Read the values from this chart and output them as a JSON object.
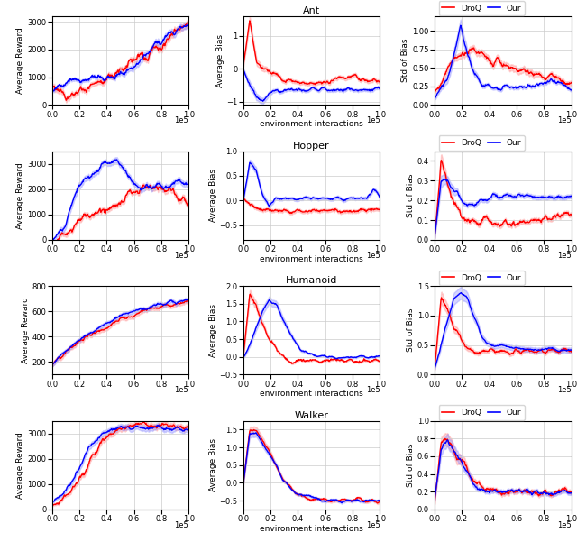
{
  "red_color": "#FF0000",
  "blue_color": "#0000FF",
  "red_fill": "#FF8888",
  "blue_fill": "#8888FF",
  "figsize": [
    6.4,
    6.01
  ],
  "dpi": 100,
  "rows": [
    {
      "name": "Ant",
      "reward": {
        "red_mean": [
          700,
          600,
          350,
          280,
          380,
          500,
          650,
          800,
          900,
          1000,
          1100,
          1300,
          1500,
          1600,
          1700,
          1800,
          2000,
          2200,
          2400,
          2600,
          2800,
          3000
        ],
        "red_std": [
          80,
          100,
          80,
          80,
          80,
          80,
          80,
          80,
          80,
          80,
          80,
          80,
          80,
          80,
          80,
          80,
          100,
          100,
          100,
          100,
          100,
          100
        ],
        "blue_mean": [
          600,
          700,
          820,
          870,
          920,
          950,
          960,
          970,
          980,
          1000,
          1050,
          1100,
          1200,
          1400,
          1700,
          2000,
          2200,
          2400,
          2600,
          2750,
          2850,
          2900
        ],
        "blue_std": [
          50,
          50,
          50,
          50,
          50,
          50,
          50,
          50,
          50,
          50,
          60,
          70,
          80,
          100,
          100,
          100,
          100,
          100,
          100,
          100,
          100,
          100
        ]
      },
      "bias": {
        "red_mean": [
          0.1,
          1.5,
          0.25,
          0.1,
          -0.1,
          -0.2,
          -0.3,
          -0.35,
          -0.4,
          -0.42,
          -0.45,
          -0.45,
          -0.4,
          -0.38,
          -0.35,
          -0.3,
          -0.3,
          -0.28,
          -0.35,
          -0.4,
          -0.38,
          -0.35
        ],
        "red_std": [
          0.04,
          0.12,
          0.1,
          0.08,
          0.06,
          0.05,
          0.05,
          0.05,
          0.05,
          0.05,
          0.05,
          0.05,
          0.05,
          0.05,
          0.05,
          0.05,
          0.05,
          0.05,
          0.05,
          0.05,
          0.05,
          0.05
        ],
        "blue_mean": [
          0.0,
          -0.5,
          -0.85,
          -1.0,
          -0.75,
          -0.7,
          -0.65,
          -0.65,
          -0.65,
          -0.65,
          -0.63,
          -0.62,
          -0.62,
          -0.62,
          -0.65,
          -0.65,
          -0.65,
          -0.65,
          -0.65,
          -0.65,
          -0.65,
          -0.65
        ],
        "blue_std": [
          0.04,
          0.1,
          0.1,
          0.08,
          0.06,
          0.05,
          0.04,
          0.04,
          0.04,
          0.04,
          0.04,
          0.04,
          0.04,
          0.04,
          0.04,
          0.04,
          0.04,
          0.04,
          0.04,
          0.04,
          0.04,
          0.04
        ]
      },
      "std_bias": {
        "red_mean": [
          0.15,
          0.3,
          0.5,
          0.6,
          0.65,
          0.72,
          0.74,
          0.7,
          0.65,
          0.6,
          0.55,
          0.52,
          0.5,
          0.48,
          0.46,
          0.44,
          0.42,
          0.4,
          0.38,
          0.35,
          0.33,
          0.3
        ],
        "red_std": [
          0.02,
          0.04,
          0.04,
          0.04,
          0.04,
          0.04,
          0.04,
          0.04,
          0.04,
          0.04,
          0.04,
          0.04,
          0.04,
          0.04,
          0.04,
          0.04,
          0.03,
          0.03,
          0.03,
          0.03,
          0.03,
          0.03
        ],
        "blue_mean": [
          0.1,
          0.2,
          0.35,
          0.7,
          1.05,
          0.7,
          0.45,
          0.3,
          0.27,
          0.25,
          0.24,
          0.24,
          0.24,
          0.24,
          0.24,
          0.25,
          0.28,
          0.3,
          0.3,
          0.28,
          0.25,
          0.22
        ],
        "blue_std": [
          0.02,
          0.03,
          0.05,
          0.08,
          0.08,
          0.06,
          0.04,
          0.03,
          0.02,
          0.02,
          0.02,
          0.02,
          0.02,
          0.02,
          0.02,
          0.02,
          0.02,
          0.02,
          0.02,
          0.02,
          0.02,
          0.02
        ]
      },
      "ylims_reward": [
        0,
        3200
      ],
      "ylims_bias": [
        -1.1,
        1.6
      ],
      "ylims_std": [
        0.0,
        1.2
      ]
    },
    {
      "name": "Hopper",
      "reward": {
        "red_mean": [
          -50,
          50,
          200,
          400,
          700,
          900,
          1000,
          1050,
          1100,
          1200,
          1400,
          1600,
          1800,
          2000,
          2100,
          2200,
          2100,
          2000,
          1900,
          1700,
          1600,
          1400
        ],
        "red_std": [
          30,
          50,
          80,
          80,
          80,
          80,
          80,
          80,
          80,
          80,
          80,
          80,
          80,
          80,
          80,
          80,
          100,
          100,
          100,
          100,
          100,
          100
        ],
        "blue_mean": [
          0,
          200,
          700,
          1400,
          2000,
          2400,
          2600,
          2800,
          3000,
          3100,
          3100,
          2900,
          2500,
          2200,
          2100,
          2100,
          2200,
          2100,
          2200,
          2300,
          2300,
          2200
        ],
        "blue_std": [
          30,
          100,
          120,
          130,
          120,
          100,
          100,
          100,
          100,
          100,
          100,
          100,
          100,
          100,
          100,
          100,
          100,
          100,
          100,
          100,
          100,
          100
        ]
      },
      "bias": {
        "red_mean": [
          0.0,
          -0.1,
          -0.15,
          -0.2,
          -0.2,
          -0.2,
          -0.2,
          -0.2,
          -0.2,
          -0.2,
          -0.2,
          -0.2,
          -0.2,
          -0.2,
          -0.2,
          -0.2,
          -0.2,
          -0.2,
          -0.2,
          -0.2,
          -0.2,
          -0.2
        ],
        "red_std": [
          0.02,
          0.03,
          0.03,
          0.03,
          0.03,
          0.03,
          0.03,
          0.03,
          0.03,
          0.03,
          0.03,
          0.03,
          0.03,
          0.03,
          0.03,
          0.03,
          0.03,
          0.03,
          0.03,
          0.03,
          0.03,
          0.03
        ],
        "blue_mean": [
          0.0,
          0.78,
          0.6,
          0.1,
          -0.1,
          0.05,
          0.05,
          0.05,
          0.05,
          0.05,
          0.05,
          0.05,
          0.05,
          0.05,
          0.05,
          0.05,
          0.05,
          0.05,
          0.05,
          0.05,
          0.25,
          0.05
        ],
        "blue_std": [
          0.02,
          0.06,
          0.06,
          0.05,
          0.04,
          0.03,
          0.03,
          0.03,
          0.03,
          0.03,
          0.03,
          0.03,
          0.03,
          0.03,
          0.03,
          0.03,
          0.03,
          0.03,
          0.03,
          0.03,
          0.03,
          0.03
        ]
      },
      "std_bias": {
        "red_mean": [
          0.02,
          0.4,
          0.3,
          0.18,
          0.12,
          0.1,
          0.09,
          0.09,
          0.09,
          0.09,
          0.09,
          0.09,
          0.09,
          0.09,
          0.09,
          0.09,
          0.1,
          0.11,
          0.11,
          0.12,
          0.13,
          0.13
        ],
        "red_std": [
          0.005,
          0.03,
          0.02,
          0.01,
          0.01,
          0.01,
          0.01,
          0.01,
          0.01,
          0.01,
          0.01,
          0.01,
          0.01,
          0.01,
          0.01,
          0.01,
          0.01,
          0.01,
          0.01,
          0.01,
          0.01,
          0.01
        ],
        "blue_mean": [
          0.02,
          0.3,
          0.3,
          0.25,
          0.2,
          0.18,
          0.18,
          0.18,
          0.2,
          0.22,
          0.22,
          0.22,
          0.22,
          0.22,
          0.22,
          0.22,
          0.22,
          0.22,
          0.22,
          0.22,
          0.22,
          0.22
        ],
        "blue_std": [
          0.005,
          0.03,
          0.02,
          0.02,
          0.01,
          0.01,
          0.01,
          0.01,
          0.01,
          0.01,
          0.01,
          0.01,
          0.01,
          0.01,
          0.01,
          0.01,
          0.01,
          0.01,
          0.01,
          0.01,
          0.01,
          0.01
        ]
      },
      "ylims_reward": [
        0,
        3500
      ],
      "ylims_bias": [
        -0.8,
        1.0
      ],
      "ylims_std": [
        0.0,
        0.45
      ]
    },
    {
      "name": "Humanoid",
      "reward": {
        "red_mean": [
          180,
          230,
          270,
          310,
          350,
          380,
          410,
          440,
          470,
          500,
          520,
          540,
          560,
          580,
          600,
          615,
          630,
          640,
          650,
          660,
          670,
          675
        ],
        "red_std": [
          15,
          15,
          15,
          15,
          15,
          15,
          15,
          15,
          15,
          15,
          15,
          15,
          15,
          15,
          15,
          15,
          15,
          15,
          15,
          15,
          15,
          15
        ],
        "blue_mean": [
          180,
          230,
          280,
          330,
          370,
          400,
          430,
          460,
          490,
          520,
          545,
          565,
          585,
          600,
          615,
          630,
          645,
          655,
          665,
          675,
          685,
          695
        ],
        "blue_std": [
          15,
          15,
          15,
          15,
          15,
          15,
          15,
          15,
          15,
          15,
          15,
          15,
          15,
          15,
          15,
          15,
          15,
          15,
          15,
          15,
          15,
          15
        ]
      },
      "bias": {
        "red_mean": [
          0.0,
          1.8,
          1.4,
          0.9,
          0.5,
          0.2,
          0.0,
          -0.1,
          -0.1,
          -0.1,
          -0.1,
          -0.1,
          -0.1,
          -0.1,
          -0.1,
          -0.1,
          -0.1,
          -0.1,
          -0.1,
          -0.1,
          -0.1,
          -0.1
        ],
        "red_std": [
          0.02,
          0.12,
          0.1,
          0.07,
          0.04,
          0.03,
          0.02,
          0.02,
          0.02,
          0.02,
          0.02,
          0.02,
          0.02,
          0.02,
          0.02,
          0.02,
          0.02,
          0.02,
          0.02,
          0.02,
          0.02,
          0.02
        ],
        "blue_mean": [
          0.0,
          0.3,
          0.8,
          1.3,
          1.6,
          1.5,
          1.1,
          0.7,
          0.4,
          0.2,
          0.1,
          0.05,
          0.0,
          0.0,
          0.0,
          0.0,
          0.0,
          0.0,
          0.0,
          0.0,
          0.0,
          0.0
        ],
        "blue_std": [
          0.02,
          0.05,
          0.08,
          0.1,
          0.1,
          0.09,
          0.08,
          0.06,
          0.04,
          0.03,
          0.02,
          0.02,
          0.02,
          0.02,
          0.02,
          0.02,
          0.02,
          0.02,
          0.02,
          0.02,
          0.02,
          0.02
        ]
      },
      "std_bias": {
        "red_mean": [
          0.1,
          1.3,
          1.1,
          0.8,
          0.6,
          0.45,
          0.4,
          0.4,
          0.4,
          0.4,
          0.4,
          0.4,
          0.4,
          0.4,
          0.4,
          0.4,
          0.4,
          0.4,
          0.4,
          0.4,
          0.4,
          0.4
        ],
        "red_std": [
          0.01,
          0.1,
          0.08,
          0.06,
          0.05,
          0.04,
          0.03,
          0.03,
          0.03,
          0.03,
          0.03,
          0.03,
          0.03,
          0.03,
          0.03,
          0.03,
          0.03,
          0.03,
          0.03,
          0.03,
          0.03,
          0.03
        ],
        "blue_mean": [
          0.1,
          0.5,
          0.9,
          1.3,
          1.4,
          1.3,
          1.0,
          0.7,
          0.55,
          0.5,
          0.5,
          0.48,
          0.45,
          0.43,
          0.42,
          0.42,
          0.42,
          0.42,
          0.42,
          0.42,
          0.42,
          0.42
        ],
        "blue_std": [
          0.01,
          0.05,
          0.08,
          0.1,
          0.1,
          0.09,
          0.07,
          0.05,
          0.04,
          0.04,
          0.04,
          0.04,
          0.04,
          0.04,
          0.04,
          0.04,
          0.04,
          0.04,
          0.04,
          0.04,
          0.04,
          0.04
        ]
      },
      "ylims_reward": [
        100,
        800
      ],
      "ylims_bias": [
        -0.5,
        2.0
      ],
      "ylims_std": [
        0.0,
        1.5
      ]
    },
    {
      "name": "Walker",
      "reward": {
        "red_mean": [
          200,
          300,
          500,
          800,
          1100,
          1500,
          2000,
          2500,
          2800,
          3000,
          3200,
          3300,
          3300,
          3300,
          3300,
          3300,
          3300,
          3300,
          3300,
          3300,
          3300,
          3200
        ],
        "red_std": [
          30,
          40,
          50,
          70,
          80,
          90,
          100,
          100,
          100,
          100,
          100,
          100,
          100,
          100,
          100,
          100,
          100,
          100,
          100,
          100,
          100,
          100
        ],
        "blue_mean": [
          200,
          400,
          700,
          1100,
          1600,
          2100,
          2500,
          2800,
          3000,
          3100,
          3200,
          3200,
          3200,
          3200,
          3200,
          3200,
          3200,
          3200,
          3200,
          3200,
          3200,
          3100
        ],
        "blue_std": [
          30,
          50,
          70,
          90,
          100,
          100,
          100,
          100,
          100,
          100,
          100,
          100,
          100,
          100,
          100,
          100,
          100,
          100,
          100,
          100,
          100,
          100
        ]
      },
      "bias": {
        "red_mean": [
          0.0,
          1.5,
          1.5,
          1.2,
          0.9,
          0.5,
          0.1,
          -0.1,
          -0.25,
          -0.35,
          -0.4,
          -0.45,
          -0.48,
          -0.5,
          -0.5,
          -0.5,
          -0.5,
          -0.5,
          -0.5,
          -0.5,
          -0.5,
          -0.5
        ],
        "red_std": [
          0.02,
          0.1,
          0.1,
          0.09,
          0.07,
          0.05,
          0.04,
          0.03,
          0.03,
          0.03,
          0.03,
          0.03,
          0.03,
          0.03,
          0.03,
          0.03,
          0.03,
          0.03,
          0.03,
          0.03,
          0.03,
          0.03
        ],
        "blue_mean": [
          0.0,
          1.4,
          1.4,
          1.1,
          0.8,
          0.5,
          0.1,
          -0.1,
          -0.25,
          -0.35,
          -0.4,
          -0.45,
          -0.48,
          -0.5,
          -0.5,
          -0.5,
          -0.5,
          -0.5,
          -0.5,
          -0.5,
          -0.5,
          -0.5
        ],
        "blue_std": [
          0.02,
          0.1,
          0.1,
          0.09,
          0.07,
          0.05,
          0.04,
          0.03,
          0.03,
          0.03,
          0.03,
          0.03,
          0.03,
          0.03,
          0.03,
          0.03,
          0.03,
          0.03,
          0.03,
          0.03,
          0.03,
          0.03
        ]
      },
      "std_bias": {
        "red_mean": [
          0.1,
          0.75,
          0.8,
          0.65,
          0.55,
          0.45,
          0.3,
          0.25,
          0.22,
          0.2,
          0.2,
          0.2,
          0.2,
          0.2,
          0.2,
          0.2,
          0.2,
          0.2,
          0.2,
          0.2,
          0.2,
          0.2
        ],
        "red_std": [
          0.01,
          0.06,
          0.07,
          0.06,
          0.05,
          0.04,
          0.03,
          0.02,
          0.02,
          0.02,
          0.02,
          0.02,
          0.02,
          0.02,
          0.02,
          0.02,
          0.02,
          0.02,
          0.02,
          0.02,
          0.02,
          0.02
        ],
        "blue_mean": [
          0.1,
          0.7,
          0.8,
          0.65,
          0.55,
          0.42,
          0.28,
          0.22,
          0.2,
          0.2,
          0.2,
          0.2,
          0.2,
          0.2,
          0.2,
          0.2,
          0.2,
          0.2,
          0.2,
          0.2,
          0.2,
          0.2
        ],
        "blue_std": [
          0.01,
          0.06,
          0.07,
          0.06,
          0.05,
          0.04,
          0.03,
          0.02,
          0.02,
          0.02,
          0.02,
          0.02,
          0.02,
          0.02,
          0.02,
          0.02,
          0.02,
          0.02,
          0.02,
          0.02,
          0.02,
          0.02
        ]
      },
      "ylims_reward": [
        0,
        3500
      ],
      "ylims_bias": [
        -0.75,
        1.75
      ],
      "ylims_std": [
        0.0,
        1.0
      ]
    }
  ]
}
